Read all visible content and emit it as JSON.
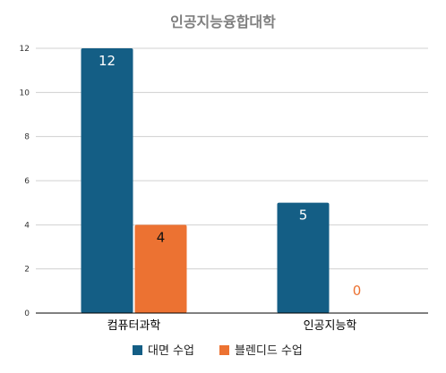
{
  "chart_data": {
    "type": "bar",
    "title": "인공지능융합대학",
    "categories": [
      "컴퓨터과학",
      "인공지능학"
    ],
    "series": [
      {
        "name": "대면 수업",
        "values": [
          12,
          5
        ],
        "color": "#145E85"
      },
      {
        "name": "블렌디드 수업",
        "values": [
          4,
          0
        ],
        "color": "#EC7232"
      }
    ],
    "ylim": [
      0,
      12
    ],
    "yticks": [
      0,
      2,
      4,
      6,
      8,
      10,
      12
    ],
    "grid": true,
    "legend": "bottom"
  }
}
